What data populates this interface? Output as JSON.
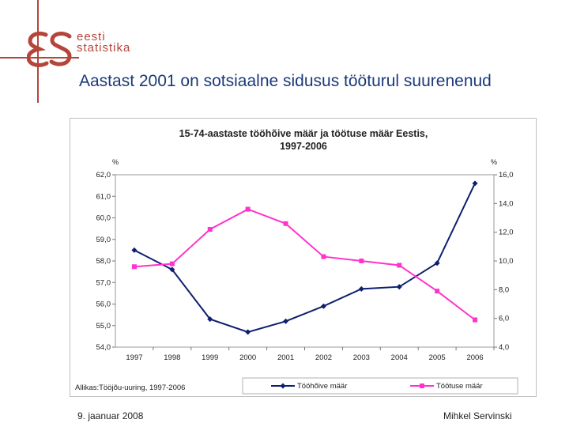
{
  "logo": {
    "line1": "eesti",
    "line2": "statistika"
  },
  "slide_title": "Aastast 2001 on sotsiaalne sidusus tööturul suurenenud",
  "footer": {
    "date": "9. jaanuar 2008",
    "author": "Mihkel Servinski"
  },
  "colors": {
    "accent": "#b5453a",
    "title": "#1a3a78",
    "series1": "#0d1f6e",
    "series2": "#ff33cc"
  },
  "chart_data": {
    "type": "line",
    "title_line1": "15-74-aastaste tööhõive määr ja töötuse määr Eestis,",
    "title_line2": "1997-2006",
    "source": "Allikas:Tööjõu-uuring, 1997-2006",
    "left_unit": "%",
    "right_unit": "%",
    "categories": [
      "1997",
      "1998",
      "1999",
      "2000",
      "2001",
      "2002",
      "2003",
      "2004",
      "2005",
      "2006"
    ],
    "left_axis": {
      "min": 54.0,
      "max": 62.0,
      "ticks": [
        "54,0",
        "55,0",
        "56,0",
        "57,0",
        "58,0",
        "59,0",
        "60,0",
        "61,0",
        "62,0"
      ]
    },
    "right_axis": {
      "min": 4.0,
      "max": 16.0,
      "ticks": [
        "4,0",
        "6,0",
        "8,0",
        "10,0",
        "12,0",
        "14,0",
        "16,0"
      ]
    },
    "series": [
      {
        "name": "Tööhõive määr",
        "axis": "left",
        "values": [
          58.5,
          57.6,
          55.3,
          54.7,
          55.2,
          55.9,
          56.7,
          56.8,
          57.9,
          61.6
        ]
      },
      {
        "name": "Töötuse määr",
        "axis": "right",
        "values": [
          9.6,
          9.8,
          12.2,
          13.6,
          12.6,
          10.3,
          10.0,
          9.7,
          7.9,
          5.9
        ]
      }
    ]
  }
}
